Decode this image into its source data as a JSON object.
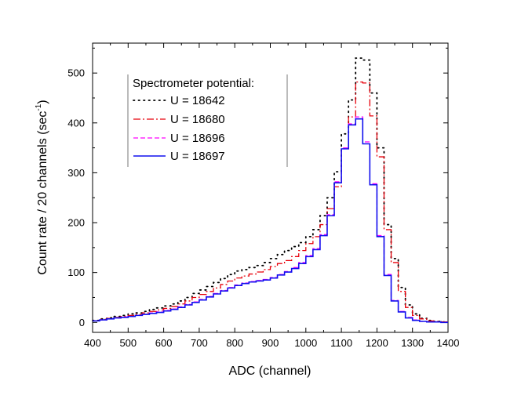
{
  "chart_data": {
    "type": "line",
    "title": "",
    "xlabel": "ADC (channel)",
    "ylabel_main": "Count rate / 20 channels (sec",
    "ylabel_sup": "-1",
    "ylabel_close": ")",
    "xlim": [
      400,
      1400
    ],
    "ylim": [
      -20,
      560
    ],
    "xticks": [
      400,
      500,
      600,
      700,
      800,
      900,
      1000,
      1100,
      1200,
      1300,
      1400
    ],
    "yticks": [
      0,
      100,
      200,
      300,
      400,
      500
    ],
    "grid": false,
    "legend": {
      "placement": "top-left",
      "title": "Spectrometer potential:"
    },
    "x": [
      400,
      420,
      440,
      460,
      480,
      500,
      520,
      540,
      560,
      580,
      600,
      620,
      640,
      660,
      680,
      700,
      720,
      740,
      760,
      780,
      800,
      820,
      840,
      860,
      880,
      900,
      920,
      940,
      960,
      980,
      1000,
      1020,
      1040,
      1060,
      1080,
      1100,
      1120,
      1140,
      1160,
      1180,
      1200,
      1220,
      1240,
      1260,
      1280,
      1300,
      1320,
      1340,
      1360,
      1380
    ],
    "series": [
      {
        "name": "U = 18642",
        "color": "#000000",
        "style": "dotted",
        "values": [
          4,
          7,
          9,
          12,
          14,
          17,
          19,
          22,
          26,
          29,
          33,
          37,
          43,
          50,
          58,
          65,
          72,
          80,
          88,
          96,
          103,
          106,
          110,
          114,
          120,
          128,
          136,
          144,
          152,
          160,
          172,
          186,
          214,
          250,
          302,
          378,
          446,
          530,
          526,
          460,
          350,
          196,
          128,
          70,
          35,
          17,
          8,
          4,
          2,
          1
        ]
      },
      {
        "name": "U = 18680",
        "color": "#e8000b",
        "style": "dashdot",
        "values": [
          3,
          6,
          8,
          10,
          12,
          14,
          16,
          19,
          22,
          25,
          28,
          32,
          37,
          43,
          50,
          56,
          62,
          69,
          76,
          83,
          89,
          93,
          97,
          101,
          106,
          112,
          118,
          124,
          132,
          144,
          158,
          172,
          196,
          228,
          272,
          348,
          412,
          482,
          480,
          414,
          332,
          186,
          120,
          62,
          30,
          14,
          7,
          3,
          2,
          1
        ]
      },
      {
        "name": "U = 18696",
        "color": "#ff00ff",
        "style": "dashed",
        "values": [
          3,
          5,
          7,
          9,
          11,
          12,
          14,
          16,
          19,
          21,
          24,
          27,
          31,
          36,
          41,
          46,
          52,
          58,
          64,
          70,
          75,
          79,
          82,
          84,
          86,
          90,
          96,
          102,
          110,
          120,
          134,
          148,
          176,
          216,
          282,
          350,
          398,
          412,
          362,
          278,
          174,
          96,
          44,
          22,
          10,
          5,
          2,
          1,
          1,
          0
        ]
      },
      {
        "name": "U = 18697",
        "color": "#1010ee",
        "style": "solid",
        "values": [
          3,
          5,
          7,
          9,
          10,
          12,
          14,
          16,
          18,
          20,
          23,
          26,
          30,
          35,
          40,
          45,
          51,
          57,
          63,
          69,
          74,
          78,
          81,
          83,
          85,
          89,
          95,
          101,
          108,
          118,
          132,
          146,
          174,
          214,
          280,
          348,
          396,
          408,
          358,
          276,
          172,
          94,
          43,
          21,
          9,
          4,
          2,
          1,
          1,
          0
        ]
      }
    ]
  }
}
